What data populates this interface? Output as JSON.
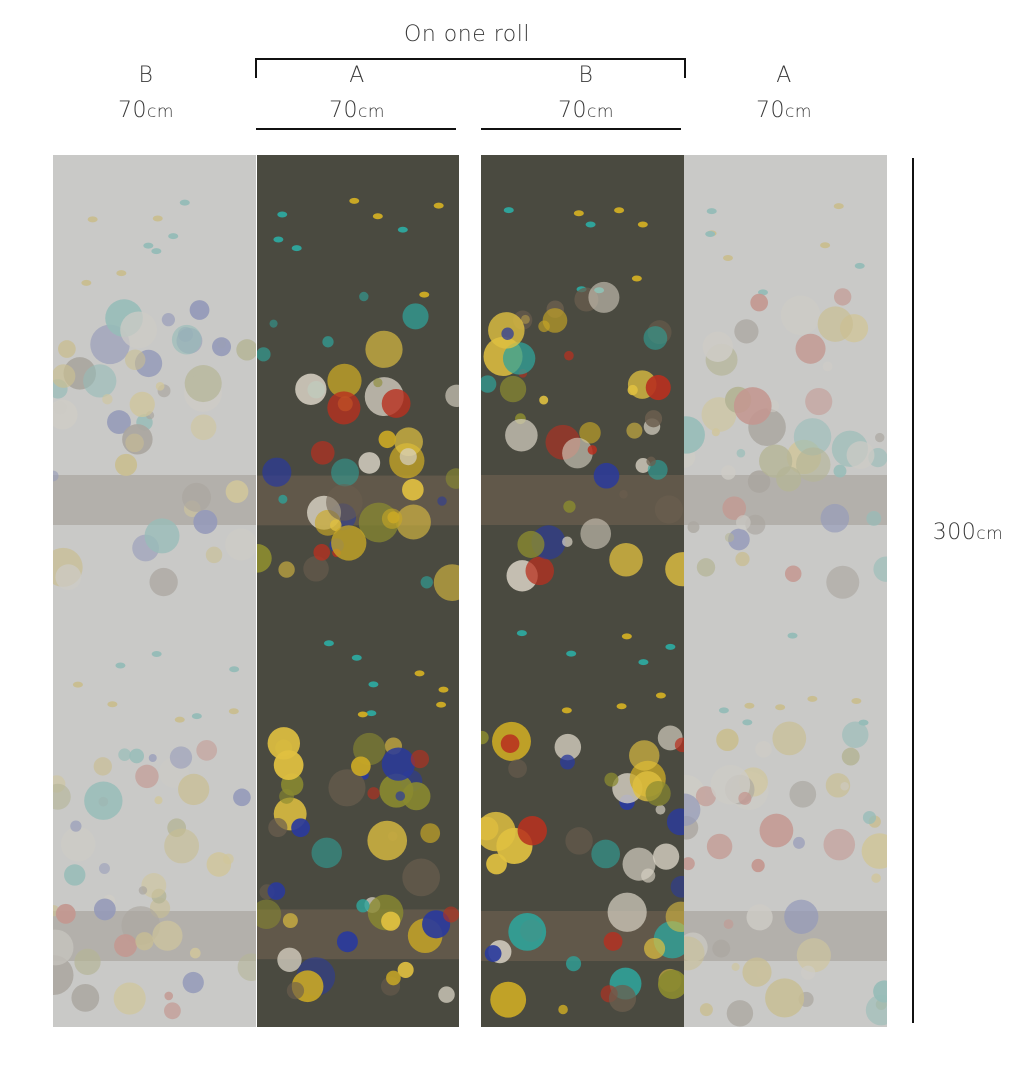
{
  "roll_label": "On one roll",
  "panels": [
    {
      "letter": "B",
      "width_value": "70",
      "width_unit": "cm",
      "faded": true
    },
    {
      "letter": "A",
      "width_value": "70",
      "width_unit": "cm",
      "faded": false
    },
    {
      "letter": "B",
      "width_value": "70",
      "width_unit": "cm",
      "faded": false
    },
    {
      "letter": "A",
      "width_value": "70",
      "width_unit": "cm",
      "faded": true
    }
  ],
  "height": {
    "value": "300",
    "unit": "cm"
  },
  "colors": {
    "background": "#4a4a40",
    "faded_background": "#c9c9c7",
    "pattern": [
      "#c9a825",
      "#2fa39a",
      "#b8301f",
      "#2a3a9c",
      "#8a8a30",
      "#d8d2c4",
      "#6b5e4e",
      "#e0c040"
    ]
  }
}
